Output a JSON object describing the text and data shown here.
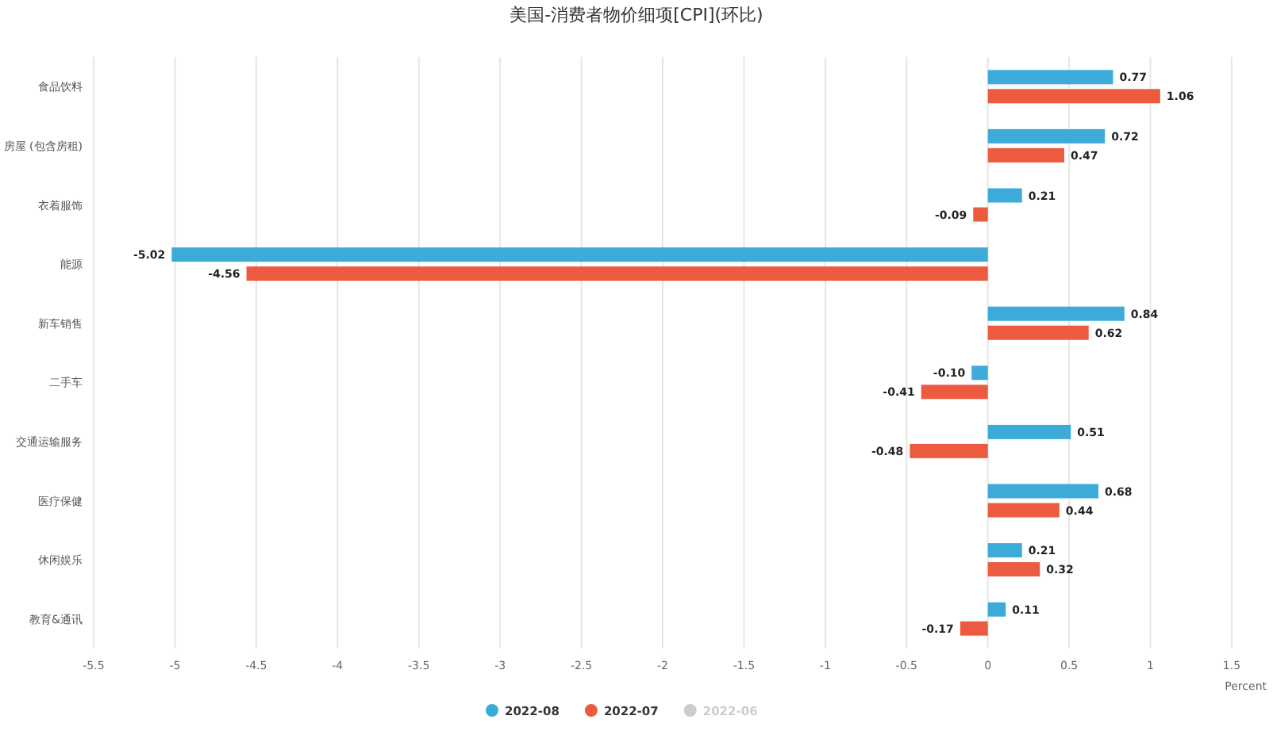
{
  "chart_data": {
    "type": "bar",
    "orientation": "horizontal",
    "title": "美国-消费者物价细项[CPI](环比)",
    "xlabel": "Percent",
    "categories": [
      "食品饮料",
      "房屋 (包含房租)",
      "衣着服饰",
      "能源",
      "新车销售",
      "二手车",
      "交通运输服务",
      "医疗保健",
      "休闲娱乐",
      "教育&通讯"
    ],
    "series": [
      {
        "name": "2022-08",
        "color": "#3cabd9",
        "values": [
          0.77,
          0.72,
          0.21,
          -5.02,
          0.84,
          -0.1,
          0.51,
          0.68,
          0.21,
          0.11
        ],
        "value_labels": [
          "0.77",
          "0.72",
          "0.21",
          "-5.02",
          "0.84",
          "-0.10",
          "0.51",
          "0.68",
          "0.21",
          "0.11"
        ]
      },
      {
        "name": "2022-07",
        "color": "#ec5b3f",
        "values": [
          1.06,
          0.47,
          -0.09,
          -4.56,
          0.62,
          -0.41,
          -0.48,
          0.44,
          0.32,
          -0.17
        ],
        "value_labels": [
          "1.06",
          "0.47",
          "-0.09",
          "-4.56",
          "0.62",
          "-0.41",
          "-0.48",
          "0.44",
          "0.32",
          "-0.17"
        ]
      },
      {
        "name": "2022-06",
        "color": "#cccccc",
        "values": [
          null,
          null,
          null,
          null,
          null,
          null,
          null,
          null,
          null,
          null
        ]
      }
    ],
    "xlim": [
      -5.5,
      1.5
    ],
    "xticks": [
      -5.5,
      -5,
      -4.5,
      -4,
      -3.5,
      -3,
      -2.5,
      -2,
      -1.5,
      -1,
      -0.5,
      0,
      0.5,
      1,
      1.5
    ],
    "grid": "x",
    "legend": "bottom"
  }
}
